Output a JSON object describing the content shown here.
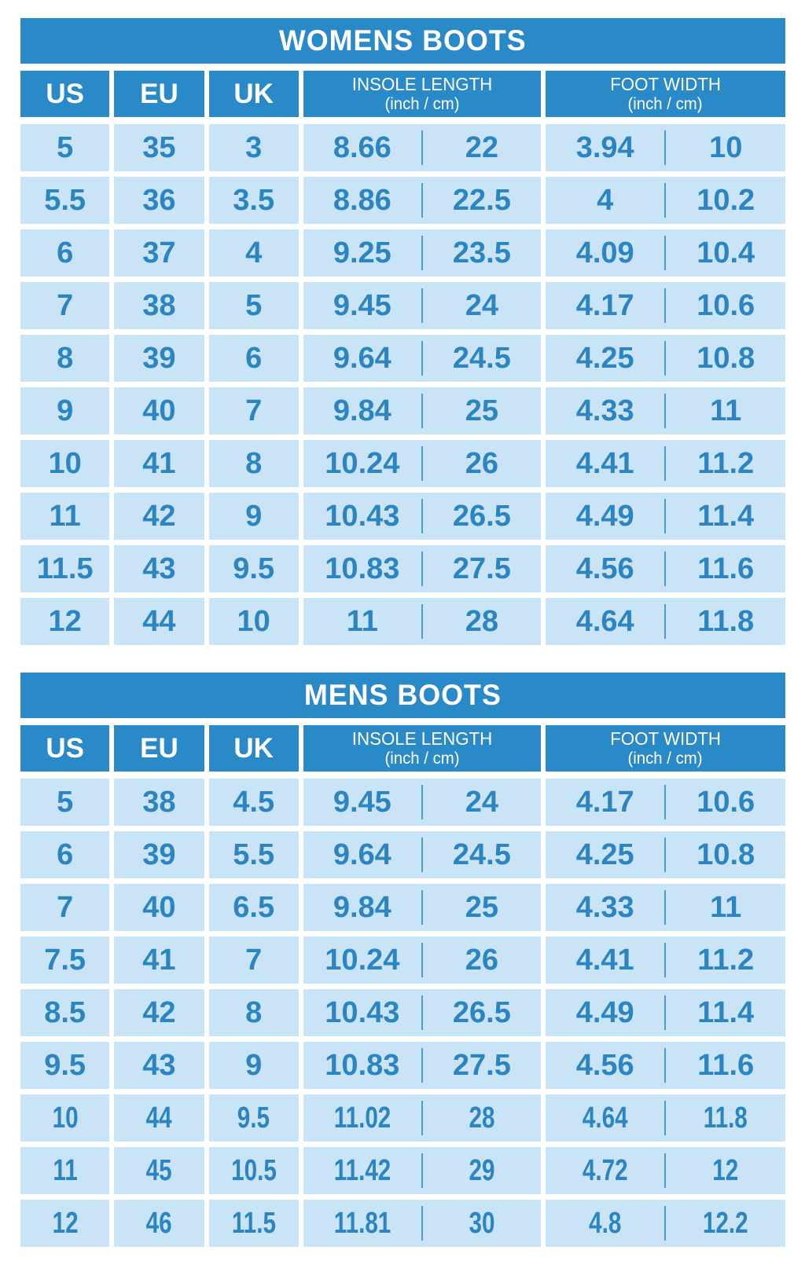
{
  "colors": {
    "primary_blue": "#2A89C7",
    "cell_light_blue": "#C8E4F6",
    "value_text_blue": "#2C85C1",
    "divider_blue": "#4E9BCB",
    "header_text": "#FFFFFF",
    "page_background": "#FFFFFF"
  },
  "headers": {
    "us": "US",
    "eu": "EU",
    "uk": "UK",
    "insole_line1": "INSOLE LENGTH",
    "insole_line2": "(inch / cm)",
    "foot_line1": "FOOT WIDTH",
    "foot_line2": "(inch / cm)"
  },
  "chart_data": [
    {
      "type": "table",
      "title": "WOMENS BOOTS",
      "columns": [
        "US",
        "EU",
        "UK",
        "INSOLE LENGTH (inch)",
        "INSOLE LENGTH (cm)",
        "FOOT WIDTH (inch)",
        "FOOT WIDTH (cm)"
      ],
      "rows": [
        [
          "5",
          "35",
          "3",
          "8.66",
          "22",
          "3.94",
          "10"
        ],
        [
          "5.5",
          "36",
          "3.5",
          "8.86",
          "22.5",
          "4",
          "10.2"
        ],
        [
          "6",
          "37",
          "4",
          "9.25",
          "23.5",
          "4.09",
          "10.4"
        ],
        [
          "7",
          "38",
          "5",
          "9.45",
          "24",
          "4.17",
          "10.6"
        ],
        [
          "8",
          "39",
          "6",
          "9.64",
          "24.5",
          "4.25",
          "10.8"
        ],
        [
          "9",
          "40",
          "7",
          "9.84",
          "25",
          "4.33",
          "11"
        ],
        [
          "10",
          "41",
          "8",
          "10.24",
          "26",
          "4.41",
          "11.2"
        ],
        [
          "11",
          "42",
          "9",
          "10.43",
          "26.5",
          "4.49",
          "11.4"
        ],
        [
          "11.5",
          "43",
          "9.5",
          "10.83",
          "27.5",
          "4.56",
          "11.6"
        ],
        [
          "12",
          "44",
          "10",
          "11",
          "28",
          "4.64",
          "11.8"
        ]
      ]
    },
    {
      "type": "table",
      "title": "MENS BOOTS",
      "columns": [
        "US",
        "EU",
        "UK",
        "INSOLE LENGTH (inch)",
        "INSOLE LENGTH (cm)",
        "FOOT WIDTH (inch)",
        "FOOT WIDTH (cm)"
      ],
      "rows": [
        [
          "5",
          "38",
          "4.5",
          "9.45",
          "24",
          "4.17",
          "10.6"
        ],
        [
          "6",
          "39",
          "5.5",
          "9.64",
          "24.5",
          "4.25",
          "10.8"
        ],
        [
          "7",
          "40",
          "6.5",
          "9.84",
          "25",
          "4.33",
          "11"
        ],
        [
          "7.5",
          "41",
          "7",
          "10.24",
          "26",
          "4.41",
          "11.2"
        ],
        [
          "8.5",
          "42",
          "8",
          "10.43",
          "26.5",
          "4.49",
          "11.4"
        ],
        [
          "9.5",
          "43",
          "9",
          "10.83",
          "27.5",
          "4.56",
          "11.6"
        ],
        [
          "10",
          "44",
          "9.5",
          "11.02",
          "28",
          "4.64",
          "11.8"
        ],
        [
          "11",
          "45",
          "10.5",
          "11.42",
          "29",
          "4.72",
          "12"
        ],
        [
          "12",
          "46",
          "11.5",
          "11.81",
          "30",
          "4.8",
          "12.2"
        ]
      ]
    }
  ]
}
